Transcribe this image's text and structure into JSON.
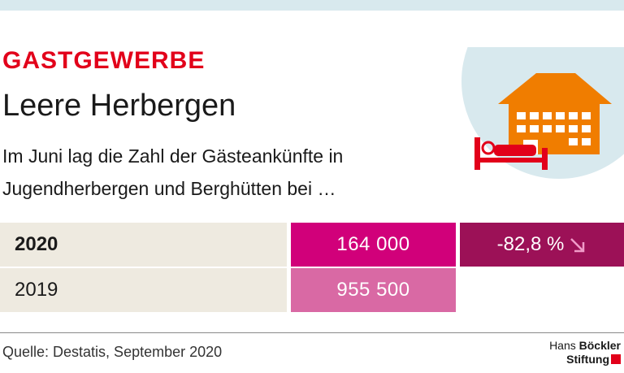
{
  "kicker": "GASTGEWERBE",
  "title": "Leere Herbergen",
  "subtitle": "Im Juni lag die Zahl der Gästeankünfte in Jugendherbergen und Berghütten bei …",
  "chart_data": {
    "type": "table",
    "columns": [
      "year",
      "arrivals",
      "change"
    ],
    "rows": [
      {
        "year": "2020",
        "value_label": "164 000",
        "value": 164000,
        "change": "-82,8 %"
      },
      {
        "year": "2019",
        "value_label": "955 500",
        "value": 955500,
        "change": ""
      }
    ]
  },
  "colors": {
    "row_bg": "#eeeae0",
    "value_2020": "#d1007a",
    "value_2019": "#d969a4",
    "change_bg": "#9c1157",
    "arrow": "#f09bc8",
    "accent_red": "#e2001a",
    "house_orange": "#f07d00",
    "circle_bg": "#d8e9ee"
  },
  "illustration": {
    "icon": "hotel-bed-icon"
  },
  "footer": {
    "source": "Quelle: Destatis, September 2020",
    "logo_line1_a": "Hans ",
    "logo_line1_b": "Böckler",
    "logo_line2": "Stiftung"
  }
}
